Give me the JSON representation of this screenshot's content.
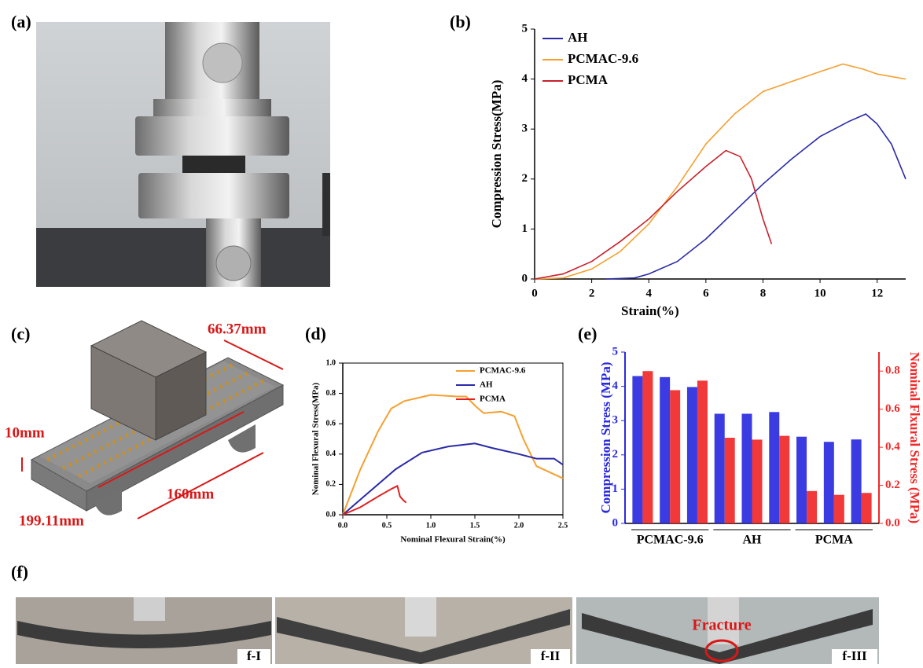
{
  "panels": [
    "(a)",
    "(c)",
    "(f)"
  ],
  "panel_c": {
    "dimensions": [
      "66.37mm",
      "10mm",
      "160mm",
      "199.11mm"
    ]
  },
  "panel_f": {
    "labels": [
      "f-I",
      "f-II",
      "f-III"
    ],
    "annotation": "Fracture"
  },
  "chart_data": [
    {
      "type": "line",
      "panel": "(b)",
      "x_label": "Strain(%)",
      "y_label": "Compression Stress(MPa)",
      "xlim": [
        0,
        13
      ],
      "ylim": [
        0,
        5
      ],
      "xticks": [
        0,
        2,
        4,
        6,
        8,
        10,
        12
      ],
      "yticks": [
        0,
        1,
        2,
        3,
        4,
        5
      ],
      "legend": "upper left",
      "series": [
        {
          "name": "AH",
          "color": "#2a2aa8",
          "x": [
            2.5,
            3.5,
            4,
            5,
            6,
            7,
            8,
            9,
            10,
            11,
            11.6,
            12,
            12.5,
            13
          ],
          "values": [
            0,
            0.02,
            0.1,
            0.35,
            0.8,
            1.35,
            1.9,
            2.4,
            2.85,
            3.15,
            3.3,
            3.1,
            2.7,
            2.0
          ]
        },
        {
          "name": "PCMAC-9.6",
          "color": "#f5a030",
          "x": [
            0,
            1,
            2,
            3,
            4,
            5,
            6,
            7,
            8,
            9,
            10,
            10.8,
            11.5,
            12,
            13
          ],
          "values": [
            0,
            0.02,
            0.2,
            0.55,
            1.1,
            1.85,
            2.7,
            3.3,
            3.75,
            3.95,
            4.15,
            4.3,
            4.2,
            4.1,
            4.0
          ]
        },
        {
          "name": "PCMA",
          "color": "#c8202a",
          "x": [
            0,
            1,
            2,
            3,
            4,
            5,
            6,
            6.7,
            7.2,
            7.6,
            8,
            8.3
          ],
          "values": [
            0,
            0.1,
            0.35,
            0.75,
            1.2,
            1.75,
            2.25,
            2.57,
            2.45,
            2.0,
            1.2,
            0.7
          ]
        }
      ]
    },
    {
      "type": "line",
      "panel": "(d)",
      "x_label": "Nominal Flexural Strain(%)",
      "y_label": "Nominal Flexural Stress(MPa)",
      "xlim": [
        0,
        2.5
      ],
      "ylim": [
        0,
        1.0
      ],
      "xticks": [
        {
          "value": 0,
          "label": "0.0"
        },
        0.5,
        {
          "value": 1,
          "label": "1.0"
        },
        1.5,
        {
          "value": 2,
          "label": "2.0"
        },
        2.5
      ],
      "yticks": [
        {
          "value": 0,
          "label": "0.0"
        },
        0.2,
        0.4,
        0.6,
        0.8,
        {
          "value": 1,
          "label": "1.0"
        }
      ],
      "legend": "upper right",
      "series": [
        {
          "name": "PCMAC-9.6",
          "color": "#f5a030",
          "x": [
            0,
            0.2,
            0.4,
            0.55,
            0.7,
            1.0,
            1.3,
            1.4,
            1.5,
            1.6,
            1.8,
            1.95,
            2.05,
            2.2,
            2.5
          ],
          "values": [
            0,
            0.3,
            0.55,
            0.7,
            0.75,
            0.79,
            0.78,
            0.78,
            0.72,
            0.67,
            0.68,
            0.65,
            0.5,
            0.32,
            0.24
          ]
        },
        {
          "name": "AH",
          "color": "#2a2aa8",
          "x": [
            0,
            0.3,
            0.6,
            0.9,
            1.2,
            1.5,
            1.7,
            2.0,
            2.2,
            2.4,
            2.5
          ],
          "values": [
            0,
            0.15,
            0.3,
            0.41,
            0.45,
            0.47,
            0.44,
            0.4,
            0.37,
            0.37,
            0.33
          ]
        },
        {
          "name": "PCMA",
          "color": "#e02020",
          "x": [
            0,
            0.2,
            0.4,
            0.55,
            0.62,
            0.65,
            0.68,
            0.72
          ],
          "values": [
            0,
            0.05,
            0.12,
            0.17,
            0.19,
            0.12,
            0.1,
            0.08
          ]
        }
      ]
    },
    {
      "type": "bar",
      "panel": "(e)",
      "y_label": "Compression Stress (MPa)",
      "y2_label": "Nominal Flxural Stress (MPa)",
      "categories": [
        null,
        "PCMAC-9.6",
        null,
        null,
        "AH",
        null,
        null,
        "PCMA",
        null
      ],
      "ylim": [
        0,
        5
      ],
      "yticks": [
        0,
        1,
        2,
        3,
        4,
        5
      ],
      "y2lim": [
        0,
        0.9
      ],
      "y2ticks": [
        {
          "value": 0,
          "label": "0.0"
        },
        0.2,
        0.4,
        0.6,
        0.8
      ],
      "series": [
        {
          "color": "#2a2ae0",
          "values": [
            4.3,
            4.27,
            3.98,
            3.2,
            3.2,
            3.25,
            2.53,
            2.38,
            2.45
          ]
        },
        {
          "color": "#f02828",
          "axis": "y2",
          "values": [
            0.8,
            0.7,
            0.75,
            0.45,
            0.44,
            0.46,
            0.17,
            0.15,
            0.16
          ]
        }
      ]
    }
  ]
}
